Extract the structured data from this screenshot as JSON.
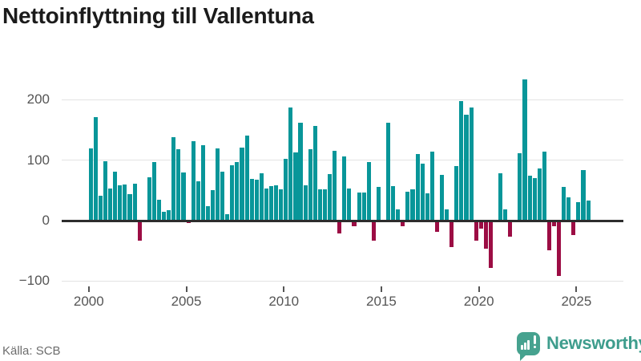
{
  "title": "Nettoinflyttning till Vallentuna",
  "source": "Källa: SCB",
  "branding": {
    "logo_text": "Newsworthy",
    "logo_text_color": "#3e9d8d",
    "logo_icon_color": "#46a28f"
  },
  "chart_data": {
    "type": "bar",
    "title": "Nettoinflyttning till Vallentuna",
    "xlabel": "",
    "ylabel": "",
    "frequency": "quarterly",
    "start_year": 2000,
    "series": [
      {
        "name": "Nettoinflyttning",
        "values": [
          121,
          172,
          42,
          99,
          54,
          82,
          60,
          61,
          45,
          63,
          -34,
          2,
          73,
          98,
          36,
          16,
          19,
          140,
          120,
          81,
          -5,
          133,
          67,
          126,
          25,
          52,
          121,
          82,
          12,
          93,
          98,
          122,
          142,
          71,
          69,
          80,
          54,
          59,
          60,
          53,
          104,
          188,
          114,
          164,
          60,
          120,
          158,
          53,
          53,
          79,
          117,
          -22,
          107,
          55,
          -11,
          48,
          48,
          98,
          -34,
          57,
          0,
          164,
          59,
          20,
          -10,
          49,
          53,
          112,
          95,
          47,
          115,
          -20,
          77,
          20,
          -45,
          92,
          199,
          176,
          189,
          -35,
          -15,
          -48,
          -80,
          0,
          80,
          20,
          -28,
          0,
          113,
          235,
          76,
          72,
          87,
          115,
          -51,
          -10,
          -93,
          57,
          40,
          -25,
          32,
          85,
          35,
          -3
        ]
      }
    ],
    "x_ticks": [
      2000,
      2005,
      2010,
      2015,
      2020,
      2025
    ],
    "y_ticks": [
      {
        "value": -100,
        "label": "−100"
      },
      {
        "value": 0,
        "label": "0"
      },
      {
        "value": 100,
        "label": "100"
      },
      {
        "value": 200,
        "label": "200"
      }
    ],
    "ylim": [
      -110,
      243
    ],
    "grid": true,
    "legend": "none",
    "colors": {
      "positive": "#089699",
      "negative": "#9c0d44",
      "grid": "#e3e3e3",
      "zero_axis": "#2d2d2d"
    }
  }
}
